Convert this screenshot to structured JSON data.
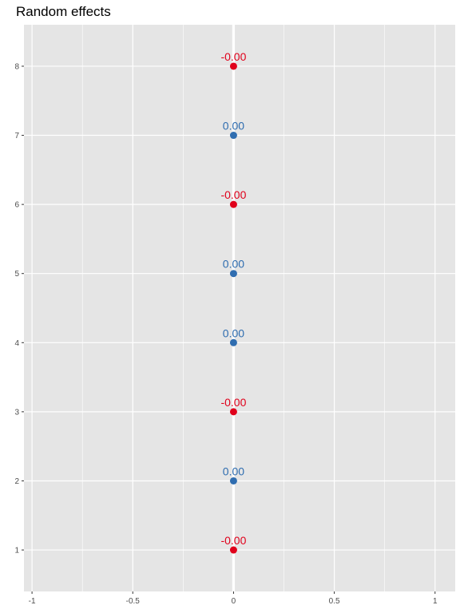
{
  "chart_data": {
    "type": "scatter",
    "title": "Random effects",
    "xlabel": "",
    "ylabel": "",
    "xlim": [
      -1.04,
      1.1
    ],
    "ylim": [
      0.4,
      8.6
    ],
    "x_ticks": [
      "-1",
      "-0.5",
      "0",
      "0.5",
      "1"
    ],
    "x_tick_values": [
      -1,
      -0.5,
      0,
      0.5,
      1
    ],
    "y_ticks": [
      "1",
      "2",
      "3",
      "4",
      "5",
      "6",
      "7",
      "8"
    ],
    "y_tick_values": [
      1,
      2,
      3,
      4,
      5,
      6,
      7,
      8
    ],
    "grid": true,
    "zero_line": true,
    "points": [
      {
        "y": 1,
        "x": 0,
        "label": "-0.00",
        "color": "#e0001b"
      },
      {
        "y": 2,
        "x": 0,
        "label": "0.00",
        "color": "#2f6db0"
      },
      {
        "y": 3,
        "x": 0,
        "label": "-0.00",
        "color": "#e0001b"
      },
      {
        "y": 4,
        "x": 0,
        "label": "0.00",
        "color": "#2f6db0"
      },
      {
        "y": 5,
        "x": 0,
        "label": "0.00",
        "color": "#2f6db0"
      },
      {
        "y": 6,
        "x": 0,
        "label": "-0.00",
        "color": "#e0001b"
      },
      {
        "y": 7,
        "x": 0,
        "label": "0.00",
        "color": "#2f6db0"
      },
      {
        "y": 8,
        "x": 0,
        "label": "-0.00",
        "color": "#e0001b"
      }
    ],
    "colors": {
      "panel": "#e5e5e5",
      "grid": "#ffffff",
      "tick_text": "#4d4d4d",
      "tick_mark": "#333333"
    }
  }
}
